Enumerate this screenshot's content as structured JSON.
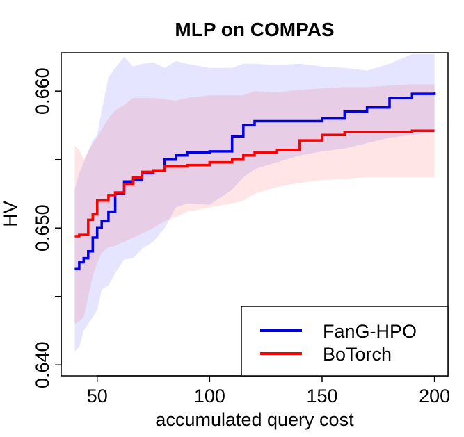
{
  "chart_data": {
    "type": "line",
    "title": "MLP on COMPAS",
    "xlabel": "accumulated query cost",
    "ylabel": "HV",
    "xlim": [
      34,
      206
    ],
    "ylim": [
      0.6392,
      0.6628
    ],
    "x_ticks": [
      50,
      100,
      150,
      200
    ],
    "x_tick_labels": [
      "50",
      "100",
      "150",
      "200"
    ],
    "y_ticks": [
      0.64,
      0.645,
      0.65,
      0.655,
      0.66
    ],
    "y_tick_labels": [
      "0.640",
      "",
      "0.650",
      "",
      "0.660"
    ],
    "grid": false,
    "legend_position": "bottom-right",
    "series": [
      {
        "name": "FanG-HPO",
        "color": "#0000e6",
        "band_color": "#0000ff",
        "x": [
          40,
          42,
          44,
          46,
          48,
          50,
          52,
          55,
          58,
          62,
          66,
          70,
          75,
          80,
          85,
          90,
          100,
          110,
          115,
          120,
          130,
          140,
          150,
          160,
          170,
          180,
          190,
          200
        ],
        "mean": [
          0.647,
          0.6475,
          0.6478,
          0.6483,
          0.6493,
          0.65,
          0.6505,
          0.6512,
          0.6525,
          0.6534,
          0.6535,
          0.654,
          0.6542,
          0.655,
          0.6553,
          0.6555,
          0.6556,
          0.6567,
          0.6575,
          0.6578,
          0.6578,
          0.6578,
          0.658,
          0.6585,
          0.6588,
          0.6595,
          0.6598,
          0.6599
        ],
        "upper": [
          0.6528,
          0.654,
          0.6548,
          0.6556,
          0.6564,
          0.6568,
          0.6586,
          0.661,
          0.6617,
          0.6625,
          0.6618,
          0.662,
          0.6621,
          0.6617,
          0.6622,
          0.662,
          0.6617,
          0.6617,
          0.662,
          0.662,
          0.6619,
          0.662,
          0.6618,
          0.6617,
          0.6615,
          0.662,
          0.6627,
          0.6627
        ],
        "lower": [
          0.641,
          0.6413,
          0.6425,
          0.643,
          0.6435,
          0.644,
          0.6455,
          0.6458,
          0.6467,
          0.6477,
          0.6478,
          0.6485,
          0.649,
          0.65,
          0.6515,
          0.6518,
          0.6517,
          0.6528,
          0.6537,
          0.6543,
          0.6548,
          0.6553,
          0.6556,
          0.6558,
          0.6562,
          0.6566,
          0.6568,
          0.657
        ]
      },
      {
        "name": "BoTorch",
        "color": "#ff0000",
        "band_color": "#ff0000",
        "x": [
          40,
          42,
          44,
          46,
          48,
          50,
          52,
          55,
          58,
          62,
          66,
          70,
          75,
          80,
          85,
          90,
          100,
          110,
          115,
          120,
          130,
          140,
          150,
          160,
          170,
          180,
          190,
          200
        ],
        "mean": [
          0.6494,
          0.6495,
          0.6495,
          0.6506,
          0.651,
          0.652,
          0.652,
          0.6524,
          0.6526,
          0.6532,
          0.6537,
          0.6541,
          0.6542,
          0.6545,
          0.6545,
          0.6546,
          0.6548,
          0.655,
          0.6553,
          0.6555,
          0.6557,
          0.6564,
          0.6568,
          0.657,
          0.657,
          0.657,
          0.6571,
          0.6571
        ],
        "upper": [
          0.656,
          0.6557,
          0.655,
          0.6556,
          0.6562,
          0.6566,
          0.6572,
          0.658,
          0.6586,
          0.659,
          0.6595,
          0.6595,
          0.6595,
          0.6594,
          0.6593,
          0.6595,
          0.6597,
          0.6597,
          0.6597,
          0.66,
          0.6599,
          0.6601,
          0.6602,
          0.6603,
          0.6603,
          0.6604,
          0.6605,
          0.6605
        ],
        "lower": [
          0.643,
          0.6432,
          0.6435,
          0.645,
          0.6465,
          0.6474,
          0.6482,
          0.6486,
          0.6487,
          0.649,
          0.6493,
          0.6496,
          0.65,
          0.6505,
          0.6508,
          0.6512,
          0.6515,
          0.6518,
          0.652,
          0.6525,
          0.653,
          0.6533,
          0.6535,
          0.6536,
          0.6537,
          0.6537,
          0.6537,
          0.6537
        ]
      }
    ]
  }
}
